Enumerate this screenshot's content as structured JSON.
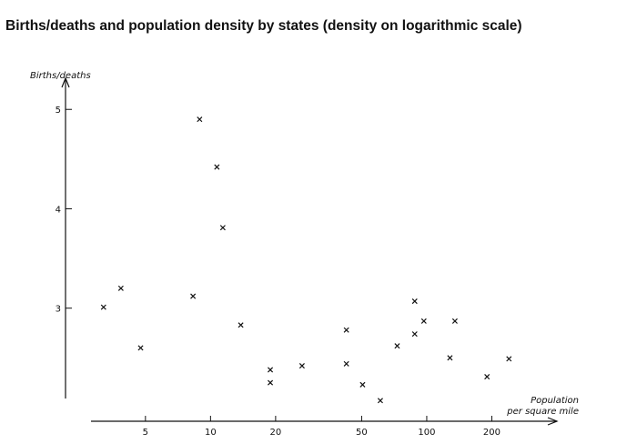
{
  "title": "Births/deaths and population density by states (density on logarithmic scale)",
  "chart_data": {
    "type": "scatter",
    "title": "Births/deaths and population density by states (density on logarithmic scale)",
    "ylabel": "Births/deaths",
    "xlabel_line1": "Population",
    "xlabel_line2": "per square mile",
    "x_scale": "log",
    "xlim": [
      2.8,
      400
    ],
    "ylim": [
      2.1,
      5.35
    ],
    "x_ticks": [
      5,
      10,
      20,
      50,
      100,
      200
    ],
    "x_tick_labels": [
      "5",
      "10",
      "20",
      "50",
      "100",
      "200"
    ],
    "y_ticks": [
      3,
      4,
      5
    ],
    "y_tick_labels": [
      "3",
      "4",
      "5"
    ],
    "marker": "x",
    "grid": false,
    "points": [
      {
        "x": 3.2,
        "y": 3.01
      },
      {
        "x": 3.85,
        "y": 3.2
      },
      {
        "x": 4.75,
        "y": 2.6
      },
      {
        "x": 8.3,
        "y": 3.12
      },
      {
        "x": 8.9,
        "y": 4.9
      },
      {
        "x": 10.7,
        "y": 4.42
      },
      {
        "x": 11.4,
        "y": 3.81
      },
      {
        "x": 13.8,
        "y": 2.83
      },
      {
        "x": 18.9,
        "y": 2.38
      },
      {
        "x": 18.9,
        "y": 2.25
      },
      {
        "x": 26.5,
        "y": 2.42
      },
      {
        "x": 42.5,
        "y": 2.78
      },
      {
        "x": 42.5,
        "y": 2.44
      },
      {
        "x": 50.5,
        "y": 2.23
      },
      {
        "x": 61,
        "y": 2.07
      },
      {
        "x": 73,
        "y": 2.62
      },
      {
        "x": 88,
        "y": 2.74
      },
      {
        "x": 88,
        "y": 3.07
      },
      {
        "x": 97,
        "y": 2.87
      },
      {
        "x": 128,
        "y": 2.5
      },
      {
        "x": 135,
        "y": 2.87
      },
      {
        "x": 190,
        "y": 2.31
      },
      {
        "x": 240,
        "y": 2.49
      }
    ]
  }
}
